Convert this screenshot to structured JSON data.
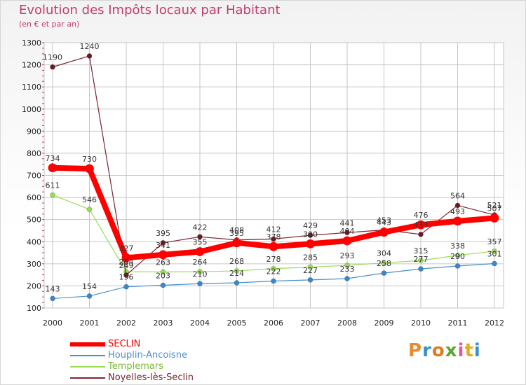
{
  "header": {
    "title": "Evolution des Impôts locaux par Habitant",
    "subtitle": "(en € et par an)"
  },
  "colors": {
    "title": "#c43a6f",
    "seclin": "#ff0000",
    "houplin": "#4a90c8",
    "templemars": "#99dd55",
    "noyelles": "#7a2530",
    "grid": "#c6c6c6"
  },
  "chart_data": {
    "type": "line",
    "title": "Evolution des Impôts locaux par Habitant",
    "subtitle": "(en € et par an)",
    "xlabel": "",
    "ylabel": "",
    "x": [
      2000,
      2001,
      2002,
      2003,
      2004,
      2005,
      2006,
      2007,
      2008,
      2009,
      2010,
      2011,
      2012
    ],
    "ylim": [
      100,
      1300
    ],
    "yticks": [
      100,
      200,
      300,
      400,
      500,
      600,
      700,
      800,
      900,
      1000,
      1100,
      1200,
      1300
    ],
    "grid": true,
    "legend_position": "bottom-left",
    "series": [
      {
        "name": "SECLIN",
        "color": "#ff0000",
        "values": [
          734,
          730,
          327,
          341,
          355,
          395,
          378,
          390,
          404,
          443,
          476,
          493,
          507
        ]
      },
      {
        "name": "Houplin-Ancoisne",
        "color": "#4a90c8",
        "values": [
          143,
          154,
          196,
          203,
          210,
          214,
          222,
          227,
          233,
          258,
          277,
          290,
          301
        ]
      },
      {
        "name": "Templemars",
        "color": "#99dd55",
        "values": [
          611,
          546,
          264,
          263,
          264,
          268,
          278,
          285,
          293,
          304,
          315,
          338,
          357
        ]
      },
      {
        "name": "Noyelles-lès-Seclin",
        "color": "#7a2530",
        "values": [
          1190,
          1240,
          249,
          395,
          422,
          408,
          412,
          429,
          441,
          453,
          433,
          564,
          521
        ]
      }
    ]
  },
  "legend": [
    {
      "label": "SECLIN"
    },
    {
      "label": "Houplin-Ancoisne"
    },
    {
      "label": "Templemars"
    },
    {
      "label": "Noyelles-lès-Seclin"
    }
  ],
  "brand": {
    "logo_text": "Proxiti",
    "logo_colors": [
      "#e98b2a",
      "#3a8fd0",
      "#e07b20",
      "#55aa33",
      "#e05a9a",
      "#e0b020",
      "#3a8fd0"
    ]
  }
}
